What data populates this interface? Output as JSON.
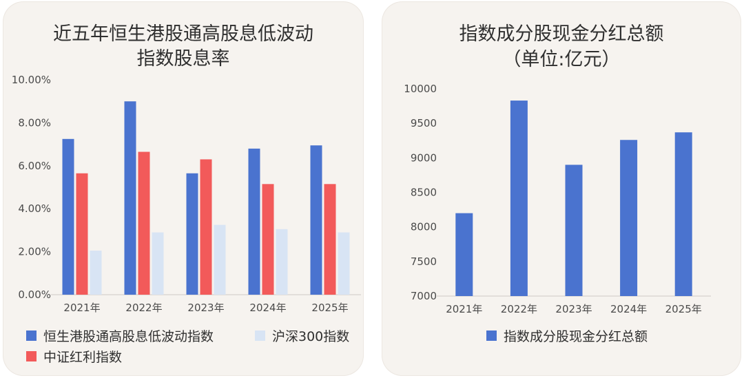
{
  "colors": {
    "card_bg": "#f6f3ef",
    "blue": "#4a73cf",
    "red": "#f25a5a",
    "light_blue": "#d8e4f4"
  },
  "chart_data": [
    {
      "type": "bar",
      "title": "近五年恒生港股通高股息低波动",
      "subtitle": "指数股息率",
      "categories": [
        "2021年",
        "2022年",
        "2023年",
        "2024年",
        "2025年"
      ],
      "series": [
        {
          "name": "恒生港股通高股息低波动指数",
          "color": "#4a73cf",
          "values": [
            7.25,
            9.0,
            5.65,
            6.8,
            6.95
          ]
        },
        {
          "name": "中证红利指数",
          "color": "#f25a5a",
          "values": [
            5.65,
            6.65,
            6.3,
            5.15,
            5.15
          ]
        },
        {
          "name": "沪深300指数",
          "color": "#d8e4f4",
          "values": [
            2.05,
            2.9,
            3.25,
            3.05,
            2.9
          ]
        }
      ],
      "yticks": [
        "0.00%",
        "2.00%",
        "4.00%",
        "6.00%",
        "8.00%",
        "10.00%"
      ],
      "ylim": [
        0,
        10
      ],
      "grid": false,
      "legend_position": "bottom"
    },
    {
      "type": "bar",
      "title": "指数成分股现金分红总额",
      "subtitle": "（单位:亿元）",
      "categories": [
        "2021年",
        "2022年",
        "2023年",
        "2024年",
        "2025年"
      ],
      "series": [
        {
          "name": "指数成分股现金分红总额",
          "color": "#4a73cf",
          "values": [
            8200,
            9830,
            8900,
            9260,
            9370
          ]
        }
      ],
      "yticks": [
        "7000",
        "7500",
        "8000",
        "8500",
        "9000",
        "9500",
        "10000"
      ],
      "ylim": [
        7000,
        10000
      ],
      "grid": false,
      "legend_position": "bottom"
    }
  ]
}
